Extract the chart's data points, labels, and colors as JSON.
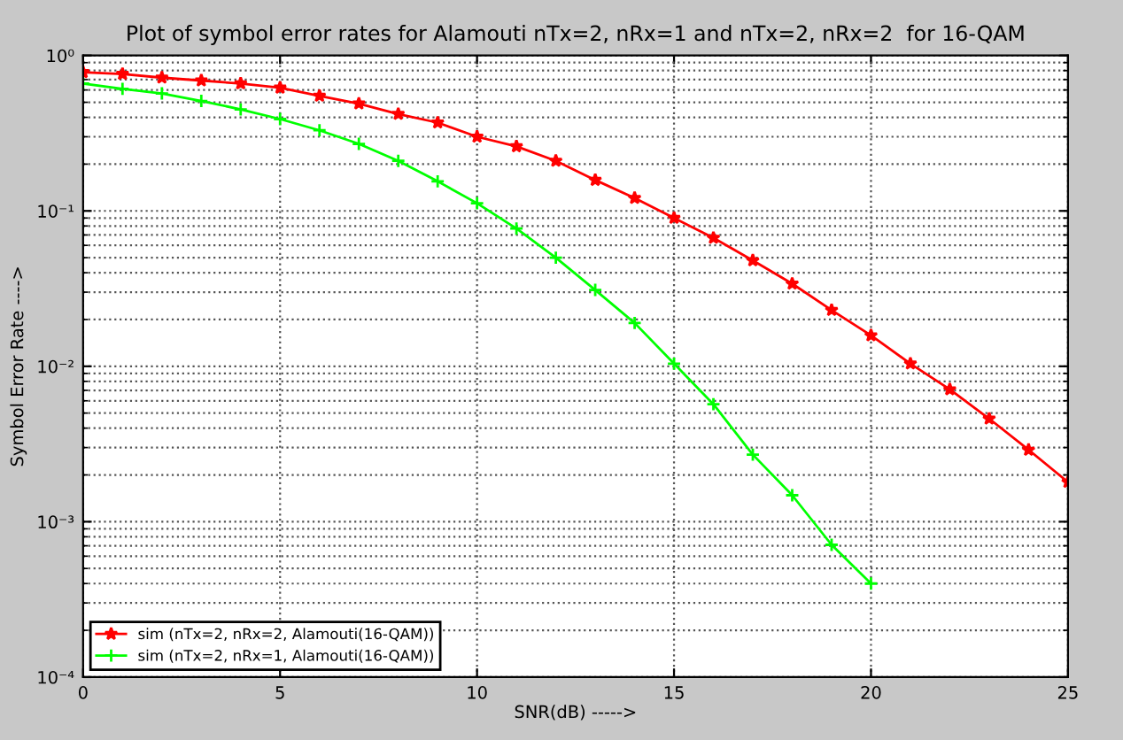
{
  "chart_data": {
    "type": "line",
    "title": "Plot of symbol error rates for Alamouti nTx=2, nRx=1 and nTx=2, nRx=2  for 16-QAM",
    "xlabel": "SNR(dB) ----->",
    "ylabel": "Symbol Error Rate ---->",
    "x": [
      0,
      1,
      2,
      3,
      4,
      5,
      6,
      7,
      8,
      9,
      10,
      11,
      12,
      13,
      14,
      15,
      16,
      17,
      18,
      19,
      20,
      21,
      22,
      23,
      24,
      25
    ],
    "series": [
      {
        "name": "sim (nTx=2, nRx=2, Alamouti(16-QAM))",
        "color": "#ff0000",
        "marker": "star",
        "values": [
          0.78,
          0.76,
          0.72,
          0.69,
          0.66,
          0.62,
          0.55,
          0.49,
          0.42,
          0.37,
          0.3,
          0.26,
          0.21,
          0.158,
          0.121,
          0.09,
          0.067,
          0.048,
          0.034,
          0.023,
          0.0158,
          0.0104,
          0.0071,
          0.0046,
          0.0029,
          0.0018
        ]
      },
      {
        "name": "sim (nTx=2, nRx=1, Alamouti(16-QAM))",
        "color": "#00ff00",
        "marker": "cross",
        "values": [
          0.66,
          0.61,
          0.57,
          0.51,
          0.45,
          0.39,
          0.33,
          0.27,
          0.21,
          0.155,
          0.112,
          0.077,
          0.05,
          0.031,
          0.019,
          0.0104,
          0.0057,
          0.0027,
          0.00148,
          0.00071,
          0.0004,
          null,
          null,
          null,
          null,
          null
        ]
      }
    ],
    "log": "y",
    "xlim": [
      0,
      25
    ],
    "xticks": [
      0,
      5,
      10,
      15,
      20,
      25
    ],
    "ylim": [
      0.0001,
      1
    ],
    "yticks": [
      {
        "value": 0.0001,
        "label": "10⁻⁴"
      },
      {
        "value": 0.001,
        "label": "10⁻³"
      },
      {
        "value": 0.01,
        "label": "10⁻²"
      },
      {
        "value": 0.1,
        "label": "10⁻¹"
      },
      {
        "value": 1,
        "label": "10⁰"
      }
    ],
    "grid": true,
    "legend": "bottom left",
    "line_style": "solid"
  }
}
